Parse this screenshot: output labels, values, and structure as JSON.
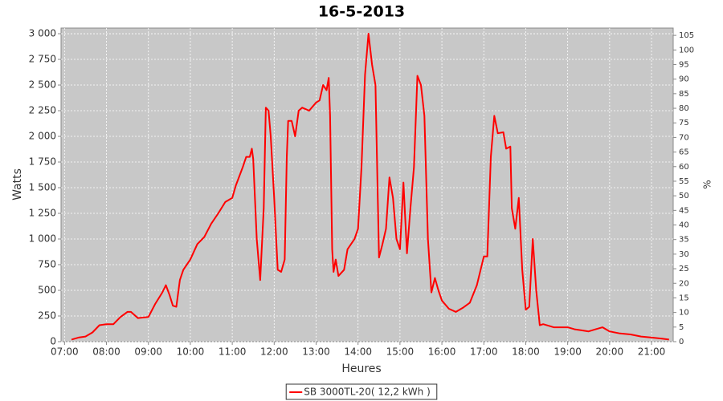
{
  "chart_data": {
    "type": "line",
    "title": "16-5-2013",
    "x_label": "Heures",
    "y_label": "Watts",
    "y2_label": "%",
    "x": [
      "07:10",
      "07:20",
      "07:30",
      "07:40",
      "07:50",
      "08:00",
      "08:10",
      "08:20",
      "08:30",
      "08:35",
      "08:45",
      "09:00",
      "09:10",
      "09:20",
      "09:25",
      "09:30",
      "09:35",
      "09:40",
      "09:45",
      "09:50",
      "10:00",
      "10:10",
      "10:20",
      "10:30",
      "10:40",
      "10:50",
      "11:00",
      "11:05",
      "11:15",
      "11:20",
      "11:25",
      "11:28",
      "11:30",
      "11:35",
      "11:40",
      "11:45",
      "11:48",
      "11:52",
      "11:55",
      "12:00",
      "12:05",
      "12:10",
      "12:15",
      "12:18",
      "12:20",
      "12:25",
      "12:30",
      "12:35",
      "12:40",
      "12:50",
      "13:00",
      "13:05",
      "13:10",
      "13:15",
      "13:18",
      "13:20",
      "13:23",
      "13:25",
      "13:28",
      "13:32",
      "13:40",
      "13:45",
      "13:55",
      "14:00",
      "14:05",
      "14:10",
      "14:15",
      "14:20",
      "14:25",
      "14:28",
      "14:30",
      "14:35",
      "14:40",
      "14:45",
      "14:50",
      "14:55",
      "15:00",
      "15:05",
      "15:10",
      "15:15",
      "15:20",
      "15:25",
      "15:30",
      "15:35",
      "15:40",
      "15:45",
      "15:50",
      "15:55",
      "16:00",
      "16:10",
      "16:20",
      "16:30",
      "16:40",
      "16:50",
      "17:00",
      "17:05",
      "17:10",
      "17:15",
      "17:20",
      "17:28",
      "17:32",
      "17:38",
      "17:40",
      "17:45",
      "17:50",
      "17:55",
      "18:00",
      "18:05",
      "18:10",
      "18:15",
      "18:20",
      "18:25",
      "18:40",
      "19:00",
      "19:10",
      "19:20",
      "19:30",
      "19:40",
      "19:50",
      "20:00",
      "20:15",
      "20:30",
      "20:45",
      "21:00",
      "21:15",
      "21:25"
    ],
    "series": [
      {
        "name": "SB 3000TL-20( 12,2 kWh )",
        "color": "#ff0000",
        "values": [
          20,
          40,
          50,
          90,
          160,
          170,
          170,
          240,
          290,
          290,
          230,
          240,
          370,
          480,
          550,
          460,
          350,
          340,
          600,
          700,
          800,
          950,
          1020,
          1150,
          1250,
          1360,
          1400,
          1520,
          1700,
          1800,
          1800,
          1880,
          1780,
          1000,
          600,
          1300,
          2280,
          2250,
          2000,
          1400,
          700,
          680,
          800,
          1800,
          2150,
          2150,
          2000,
          2250,
          2280,
          2250,
          2330,
          2350,
          2500,
          2450,
          2570,
          2200,
          900,
          680,
          800,
          640,
          700,
          900,
          1000,
          1100,
          1700,
          2600,
          3000,
          2700,
          2500,
          1500,
          820,
          950,
          1100,
          1600,
          1400,
          1000,
          900,
          1550,
          860,
          1300,
          1700,
          2590,
          2500,
          2200,
          1000,
          480,
          620,
          500,
          400,
          320,
          290,
          330,
          380,
          550,
          830,
          830,
          1800,
          2200,
          2030,
          2040,
          1880,
          1900,
          1300,
          1100,
          1400,
          700,
          310,
          340,
          1000,
          500,
          160,
          170,
          140,
          140,
          120,
          110,
          100,
          120,
          140,
          100,
          80,
          70,
          50,
          40,
          30,
          20
        ]
      }
    ],
    "xlim": [
      "06:55",
      "21:31"
    ],
    "xticks": [
      "07:00",
      "08:00",
      "09:00",
      "10:00",
      "11:00",
      "12:00",
      "13:00",
      "14:00",
      "15:00",
      "16:00",
      "17:00",
      "18:00",
      "19:00",
      "20:00",
      "21:00"
    ],
    "ylim": [
      0,
      3055
    ],
    "yticks": [
      0,
      250,
      500,
      750,
      {
        "value": 1000,
        "label": "1 000"
      },
      {
        "value": 1250,
        "label": "1 250"
      },
      {
        "value": 1500,
        "label": "1 500"
      },
      {
        "value": 1750,
        "label": "1 750"
      },
      {
        "value": 2000,
        "label": "2 000"
      },
      {
        "value": 2250,
        "label": "2 250"
      },
      {
        "value": 2500,
        "label": "2 500"
      },
      {
        "value": 2750,
        "label": "2 750"
      },
      {
        "value": 3000,
        "label": "3 000"
      }
    ],
    "y2lim": [
      0,
      107.5
    ],
    "y2ticks": [
      0,
      5,
      10,
      15,
      20,
      25,
      30,
      35,
      40,
      45,
      50,
      55,
      60,
      65,
      70,
      75,
      80,
      85,
      90,
      95,
      100,
      105
    ],
    "grid": true,
    "legend": "bottom",
    "plot_background": "#c8c8c8"
  }
}
